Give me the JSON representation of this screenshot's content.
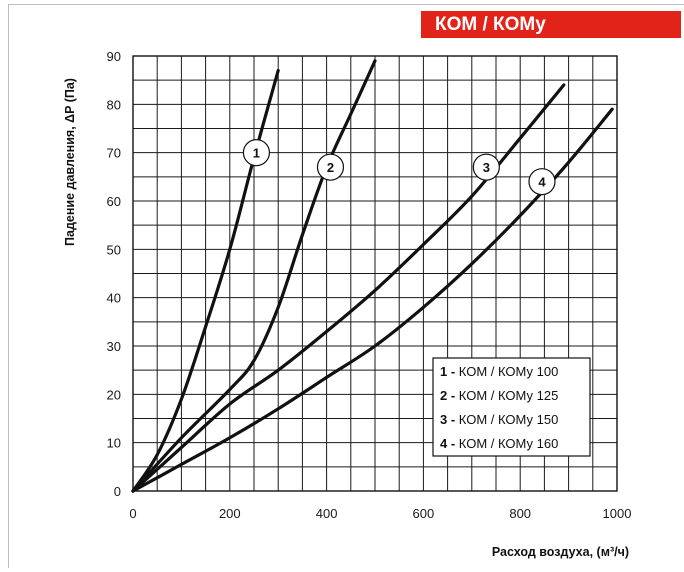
{
  "header": {
    "banner": "КОМ / КОМу"
  },
  "chart_data": {
    "type": "line",
    "xlabel": "Расход воздуха, (м³/ч)",
    "ylabel": "Падение давления, ΔP (Па)",
    "xlim": [
      0,
      1000
    ],
    "ylim": [
      0,
      90
    ],
    "xticks": [
      "0",
      "200",
      "400",
      "600",
      "800",
      "1000"
    ],
    "yticks": [
      "0",
      "10",
      "20",
      "30",
      "40",
      "50",
      "60",
      "70",
      "80",
      "90"
    ],
    "grid": true,
    "legend_position": "bottom-right",
    "series": [
      {
        "name": "КОМ / КОМу 100",
        "number": "1",
        "label_at": [
          255,
          70
        ],
        "points": [
          [
            0,
            0
          ],
          [
            50,
            7.5
          ],
          [
            100,
            19
          ],
          [
            150,
            34
          ],
          [
            200,
            50
          ],
          [
            250,
            69
          ],
          [
            300,
            87
          ]
        ]
      },
      {
        "name": "КОМ / КОМу 125",
        "number": "2",
        "label_at": [
          408,
          67
        ],
        "points": [
          [
            0,
            0
          ],
          [
            100,
            11
          ],
          [
            200,
            21
          ],
          [
            250,
            27
          ],
          [
            300,
            38
          ],
          [
            350,
            53
          ],
          [
            400,
            67
          ],
          [
            450,
            78
          ],
          [
            500,
            89
          ]
        ]
      },
      {
        "name": "КОМ / КОМу 150",
        "number": "3",
        "label_at": [
          730,
          67
        ],
        "points": [
          [
            0,
            0
          ],
          [
            100,
            9
          ],
          [
            200,
            18
          ],
          [
            300,
            25
          ],
          [
            400,
            33
          ],
          [
            500,
            41.5
          ],
          [
            600,
            51
          ],
          [
            700,
            61
          ],
          [
            800,
            73
          ],
          [
            890,
            84
          ]
        ]
      },
      {
        "name": "КОМ / КОМу 160",
        "number": "4",
        "label_at": [
          845,
          64
        ],
        "points": [
          [
            0,
            0
          ],
          [
            100,
            5.5
          ],
          [
            200,
            11
          ],
          [
            300,
            17
          ],
          [
            400,
            23.5
          ],
          [
            500,
            30
          ],
          [
            600,
            38
          ],
          [
            700,
            47
          ],
          [
            800,
            57
          ],
          [
            900,
            68
          ],
          [
            990,
            79
          ]
        ]
      }
    ]
  }
}
